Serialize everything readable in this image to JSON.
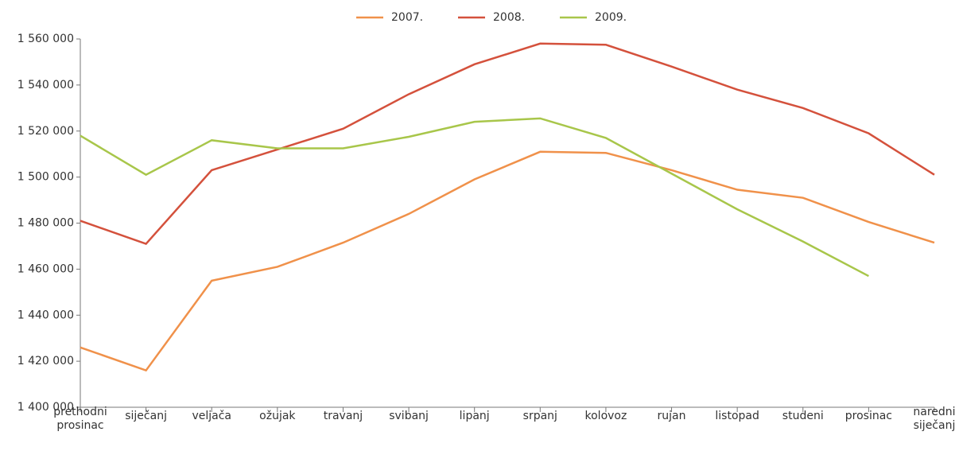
{
  "chart_data": {
    "type": "line",
    "categories": [
      "prethodni prosinac",
      "siječanj",
      "veljača",
      "ožujak",
      "travanj",
      "svibanj",
      "lipanj",
      "srpanj",
      "kolovoz",
      "rujan",
      "listopad",
      "studeni",
      "prosinac",
      "naredni siječanj"
    ],
    "series": [
      {
        "name": "2007.",
        "color": "#f0914a",
        "values": [
          1426000,
          1416000,
          1455000,
          1461000,
          1471500,
          1484000,
          1499000,
          1511000,
          1510500,
          1503000,
          1494500,
          1491000,
          1480500,
          1471500
        ]
      },
      {
        "name": "2008.",
        "color": "#d4513c",
        "values": [
          1481000,
          1471000,
          1503000,
          1512000,
          1521000,
          1536000,
          1549000,
          1558000,
          1557500,
          1548000,
          1538000,
          1530000,
          1519000,
          1501000
        ]
      },
      {
        "name": "2009.",
        "color": "#a8c64a",
        "values": [
          1518000,
          1501000,
          1516000,
          1512500,
          1512500,
          1517500,
          1524000,
          1525500,
          1517000,
          1501500,
          1486000,
          1472000,
          1457000,
          null
        ]
      }
    ],
    "ylim": [
      1400000,
      1560000
    ],
    "yticks": [
      {
        "value": 1400000,
        "label": "1 400 000"
      },
      {
        "value": 1420000,
        "label": "1 420 000"
      },
      {
        "value": 1440000,
        "label": "1 440 000"
      },
      {
        "value": 1460000,
        "label": "1 460 000"
      },
      {
        "value": 1480000,
        "label": "1 480 000"
      },
      {
        "value": 1500000,
        "label": "1 500 000"
      },
      {
        "value": 1520000,
        "label": "1 520 000"
      },
      {
        "value": 1540000,
        "label": "1 540 000"
      },
      {
        "value": 1560000,
        "label": "1 560 000"
      }
    ],
    "grid": false,
    "legend": "top"
  }
}
